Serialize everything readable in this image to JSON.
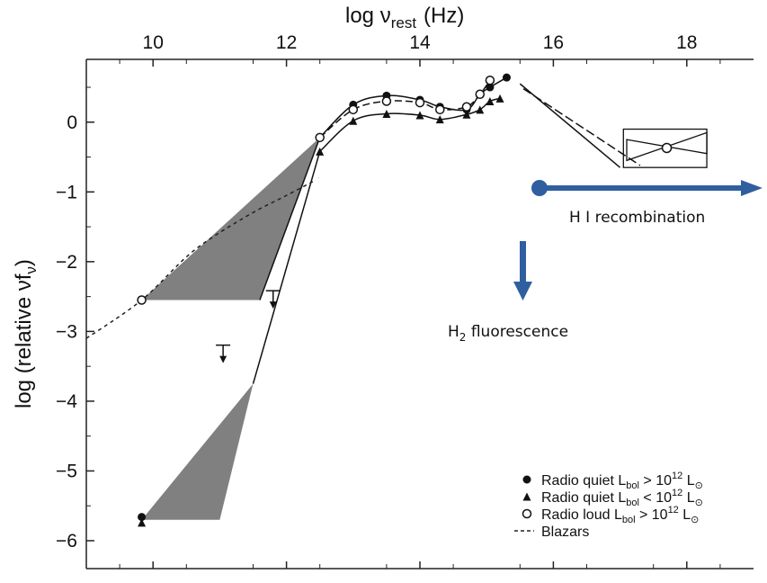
{
  "chart_data": {
    "type": "scatter",
    "title": "",
    "xlabel": {
      "text": "log ν",
      "sub": "rest",
      "unit": "(Hz)"
    },
    "ylabel": {
      "text": "log (relative νf",
      "sub": "ν",
      "close": ")"
    },
    "xlim": [
      9.0,
      19.0
    ],
    "ylim": [
      -6.4,
      0.9
    ],
    "xticks": [
      10,
      12,
      14,
      16,
      18
    ],
    "yticks": [
      0,
      -1,
      -2,
      -3,
      -4,
      -5,
      -6
    ],
    "ytick_labels": [
      "0",
      "−1",
      "−2",
      "−3",
      "−4",
      "−5",
      "−6"
    ],
    "grid": false,
    "series": [
      {
        "name": "Radio quiet",
        "lum": "> 10",
        "marker": "filled-circle",
        "points": [
          [
            9.83,
            -5.66
          ],
          [
            12.5,
            -0.22
          ],
          [
            13.0,
            0.25
          ],
          [
            13.5,
            0.38
          ],
          [
            14.0,
            0.32
          ],
          [
            14.3,
            0.22
          ],
          [
            14.7,
            0.18
          ],
          [
            14.9,
            0.4
          ],
          [
            15.05,
            0.5
          ],
          [
            15.3,
            0.64
          ]
        ]
      },
      {
        "name": "Radio quiet",
        "lum": "< 10",
        "marker": "filled-triangle",
        "points": [
          [
            9.83,
            -5.74
          ],
          [
            12.5,
            -0.42
          ],
          [
            13.0,
            0.02
          ],
          [
            13.5,
            0.12
          ],
          [
            14.0,
            0.1
          ],
          [
            14.3,
            0.04
          ],
          [
            14.7,
            0.11
          ],
          [
            14.9,
            0.18
          ],
          [
            15.05,
            0.3
          ],
          [
            15.2,
            0.34
          ]
        ]
      },
      {
        "name": "Radio loud",
        "lum": "> 10",
        "marker": "open-circle",
        "points": [
          [
            9.83,
            -2.55
          ],
          [
            12.5,
            -0.22
          ],
          [
            13.0,
            0.18
          ],
          [
            13.5,
            0.3
          ],
          [
            14.0,
            0.28
          ],
          [
            14.3,
            0.18
          ],
          [
            14.7,
            0.22
          ],
          [
            14.9,
            0.4
          ],
          [
            15.05,
            0.6
          ]
        ]
      },
      {
        "name": "Blazars",
        "marker": "dashed-line",
        "points": [
          [
            9.0,
            -3.1
          ],
          [
            9.83,
            -2.55
          ],
          [
            10.6,
            -1.85
          ],
          [
            11.4,
            -1.35
          ],
          [
            12.0,
            -1.05
          ],
          [
            12.5,
            -0.8
          ]
        ]
      }
    ],
    "upper_limits": [
      [
        11.8,
        -2.52
      ],
      [
        11.05,
        -3.3
      ]
    ],
    "xray": {
      "center": [
        17.7,
        -0.37
      ]
    },
    "legend": {
      "position": "bottom-right",
      "bol": "bol",
      "exp": "12",
      "sun": "L",
      "entries": [
        {
          "marker": "filled-circle",
          "label": "Radio quiet L",
          "rel": "> 10"
        },
        {
          "marker": "filled-triangle",
          "label": "Radio quiet L",
          "rel": "< 10"
        },
        {
          "marker": "open-circle",
          "label": "Radio loud L",
          "rel": "> 10"
        },
        {
          "marker": "dashed-line",
          "label": "Blazars"
        }
      ]
    },
    "annotations": {
      "hi_label": "H I recombination",
      "h2_label": {
        "pre": "H",
        "sub": "2",
        "post": " fluorescence"
      },
      "arrow_color": "#2f5f9e"
    }
  }
}
